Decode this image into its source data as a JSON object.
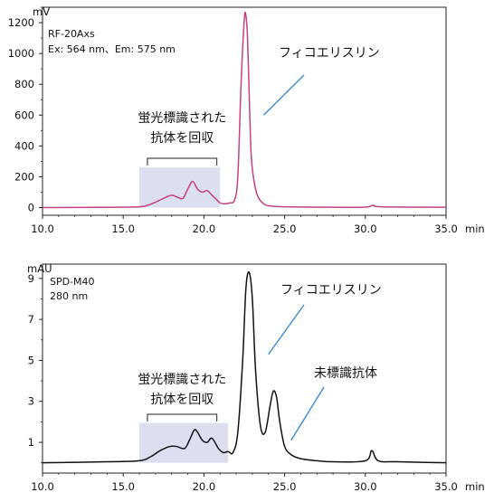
{
  "chart_data": [
    {
      "type": "line",
      "instrument": "RF-20Axs",
      "conditions": "Ex: 564 nm、Em: 575 nm",
      "ylabel": "mV",
      "xunit": "min",
      "xlim": [
        10.0,
        35.0
      ],
      "ylim": [
        -50,
        1300
      ],
      "xticks": [
        "10.0",
        "15.0",
        "20.0",
        "25.0",
        "30.0",
        "35.0"
      ],
      "yticks": [
        "0",
        "200",
        "400",
        "600",
        "800",
        "1000",
        "1200"
      ],
      "line_color": "#c2417f",
      "series": [
        {
          "x": [
            10.0,
            14.0,
            16.0,
            16.5,
            17.0,
            17.5,
            18.0,
            18.4,
            18.7,
            19.0,
            19.3,
            19.6,
            19.9,
            20.2,
            20.5,
            20.8,
            21.0,
            21.3,
            21.6,
            21.9,
            22.1,
            22.3,
            22.5,
            22.6,
            22.7,
            22.8,
            22.9,
            23.0,
            23.2,
            23.4,
            23.7,
            24.0,
            25.0,
            28.0,
            30.0,
            30.5,
            31.0,
            35.0
          ],
          "y": [
            0,
            2,
            5,
            15,
            35,
            60,
            80,
            65,
            60,
            120,
            170,
            120,
            100,
            110,
            80,
            50,
            30,
            25,
            30,
            50,
            200,
            800,
            1220,
            1245,
            1100,
            750,
            400,
            250,
            120,
            60,
            25,
            12,
            5,
            2,
            3,
            15,
            5,
            2
          ]
        }
      ],
      "highlight": {
        "x_range": [
          16.0,
          21.0
        ],
        "y_range": [
          0,
          260
        ],
        "color": "#dcdff0"
      },
      "annotations": [
        {
          "text": "フィコエリスリン",
          "target": [
            23.7,
            600
          ]
        },
        {
          "text_lines": [
            "蛍光標識された",
            "抗体を回収"
          ],
          "bracket": [
            16.5,
            20.8
          ]
        }
      ]
    },
    {
      "type": "line",
      "instrument": "SPD-M40",
      "conditions": "280 nm",
      "ylabel": "mAU",
      "xunit": "min",
      "xlim": [
        10.0,
        35.0
      ],
      "ylim": [
        -0.5,
        9.7
      ],
      "xticks": [
        "10.0",
        "15.0",
        "20.0",
        "25.0",
        "30.0",
        "35.0"
      ],
      "yticks": [
        "1",
        "3",
        "5",
        "7",
        "9"
      ],
      "line_color": "#111111",
      "series": [
        {
          "x": [
            10.0,
            14.0,
            16.0,
            16.7,
            17.3,
            17.9,
            18.3,
            18.8,
            19.1,
            19.4,
            19.6,
            19.9,
            20.2,
            20.5,
            20.9,
            21.2,
            21.5,
            21.8,
            22.1,
            22.4,
            22.6,
            22.8,
            23.0,
            23.2,
            23.5,
            23.8,
            24.1,
            24.3,
            24.5,
            24.7,
            25.0,
            25.4,
            26.0,
            27.0,
            28.0,
            30.0,
            30.4,
            30.8,
            32.0,
            35.0
          ],
          "y": [
            0.0,
            0.05,
            0.1,
            0.3,
            0.6,
            0.8,
            0.8,
            0.7,
            1.1,
            1.6,
            1.5,
            1.1,
            1.0,
            1.2,
            0.7,
            0.5,
            0.55,
            0.5,
            1.5,
            5.0,
            8.5,
            9.3,
            8.0,
            4.5,
            1.8,
            1.5,
            2.8,
            3.5,
            3.2,
            2.0,
            0.8,
            0.4,
            0.2,
            0.1,
            0.05,
            0.1,
            0.6,
            0.1,
            0.05,
            0.0
          ]
        }
      ],
      "highlight": {
        "x_range": [
          16.0,
          21.5
        ],
        "y_range": [
          0,
          1.95
        ],
        "color": "#dcdff0"
      },
      "annotations": [
        {
          "text": "フィコエリスリン",
          "target": [
            24.0,
            5.3
          ]
        },
        {
          "text": "未標識抗体",
          "target": [
            25.4,
            1.1
          ]
        },
        {
          "text_lines": [
            "蛍光標識された",
            "抗体を回収"
          ],
          "bracket": [
            16.5,
            20.8
          ]
        }
      ]
    }
  ]
}
